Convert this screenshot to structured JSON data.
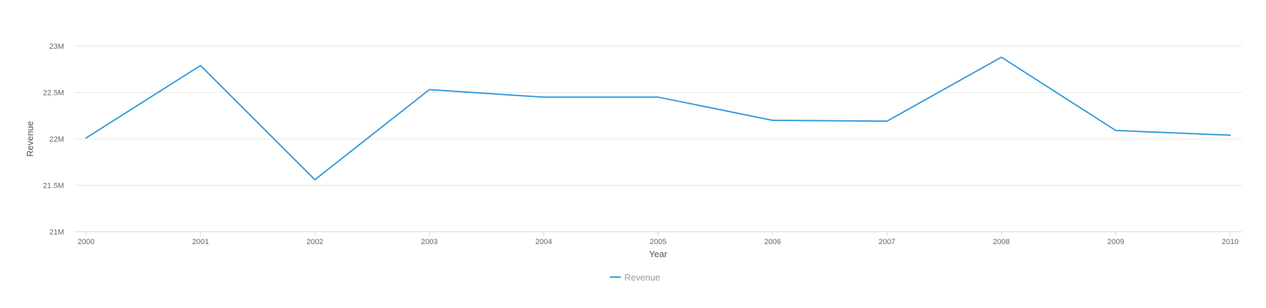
{
  "chart_data": {
    "type": "line",
    "title": "",
    "xlabel": "Year",
    "ylabel": "Revenue",
    "categories": [
      "2000",
      "2001",
      "2002",
      "2003",
      "2004",
      "2005",
      "2006",
      "2007",
      "2008",
      "2009",
      "2010"
    ],
    "series": [
      {
        "name": "Revenue",
        "color": "#3399dd",
        "values": [
          22010000,
          22790000,
          21560000,
          22530000,
          22450000,
          22450000,
          22200000,
          22190000,
          22880000,
          22090000,
          22040000
        ]
      }
    ],
    "ylim": [
      21000000,
      23000000
    ],
    "yticks": [
      21000000,
      21500000,
      22000000,
      22500000,
      23000000
    ],
    "ytick_labels": [
      "21M",
      "21.5M",
      "22M",
      "22.5M",
      "23M"
    ],
    "grid": true,
    "legend_position": "bottom-center",
    "colors": {
      "grid": "#e6e6e6",
      "axis": "#ccd6eb"
    }
  }
}
